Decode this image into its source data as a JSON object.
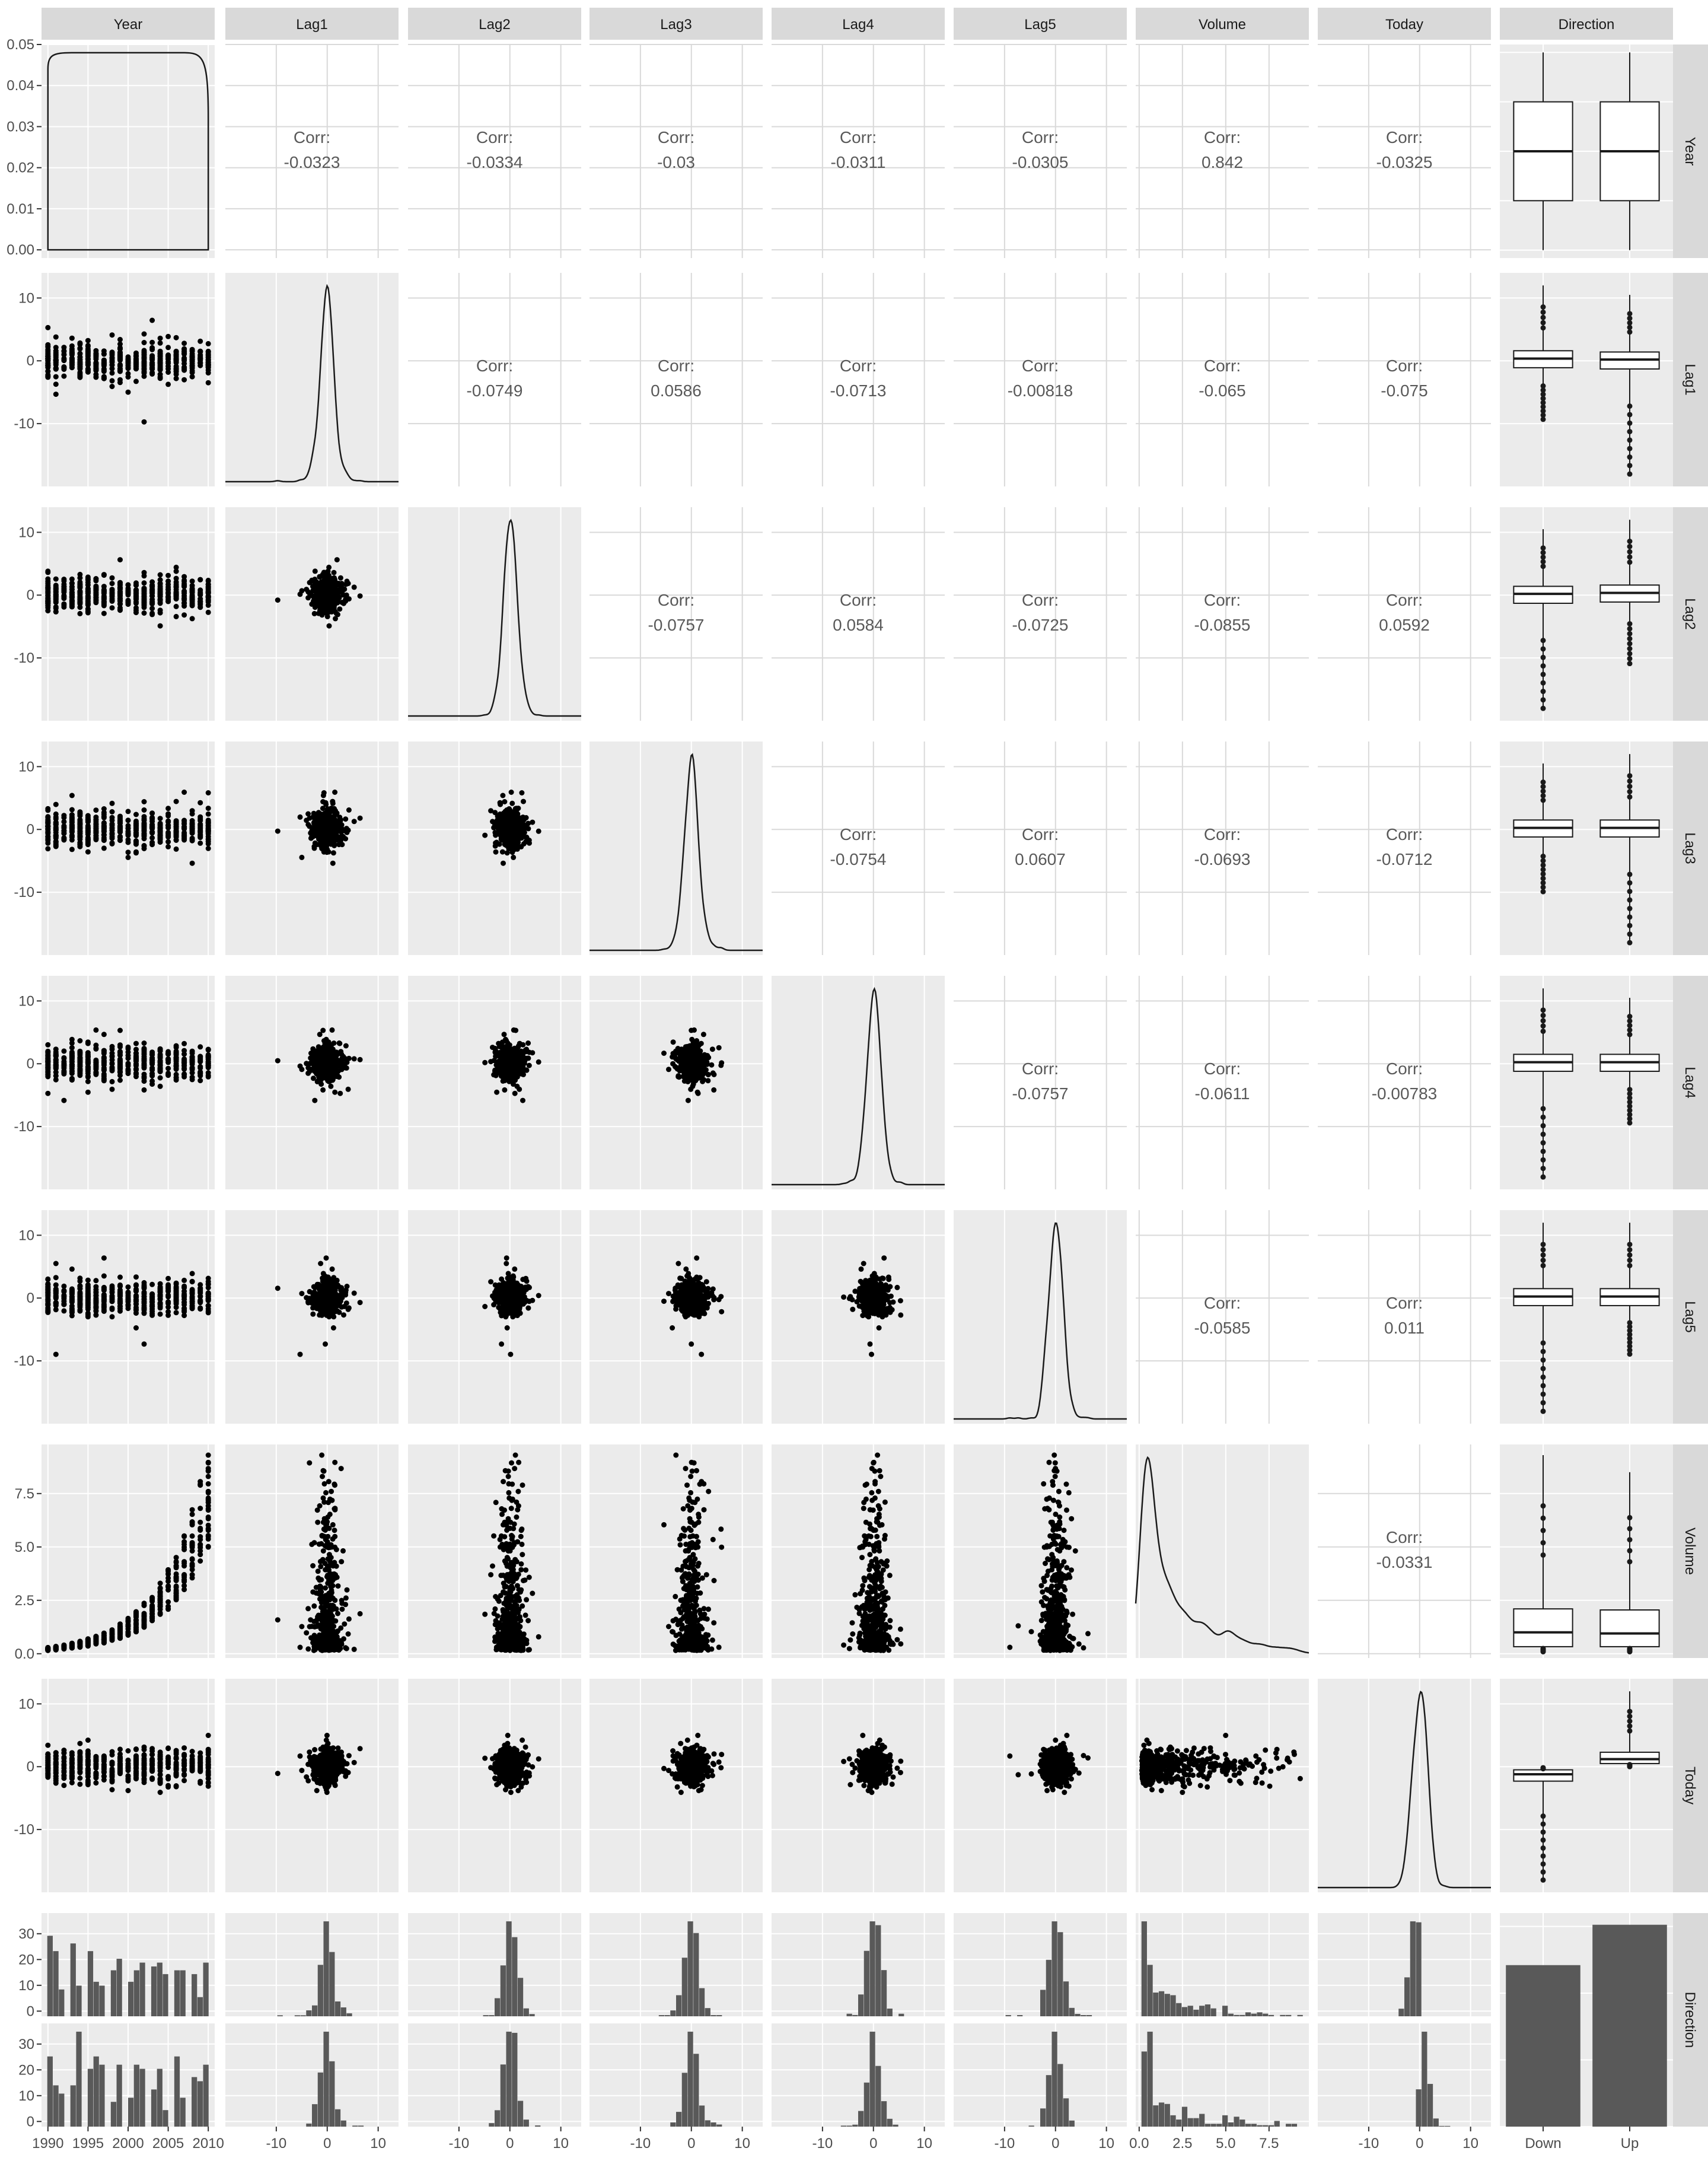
{
  "chart_data": {
    "type": "scatter",
    "variables": [
      "Year",
      "Lag1",
      "Lag2",
      "Lag3",
      "Lag4",
      "Lag5",
      "Volume",
      "Today",
      "Direction"
    ],
    "axes": {
      "Year": {
        "range": [
          1989.2,
          2010.8
        ],
        "ticks": [
          1990,
          1995,
          2000,
          2005,
          2010
        ]
      },
      "Lag": {
        "range": [
          -20,
          14
        ],
        "ticks": [
          -10,
          0,
          10
        ]
      },
      "Volume": {
        "range": [
          -0.2,
          9.8
        ],
        "ticks": [
          0.0,
          2.5,
          5.0,
          7.5
        ]
      },
      "Direction": {
        "categories": [
          "Down",
          "Up"
        ]
      },
      "year_density_y": {
        "range": [
          -0.002,
          0.05
        ],
        "ticks": [
          "0.00",
          "0.01",
          "0.02",
          "0.03",
          "0.04",
          "0.05"
        ]
      },
      "direction_count": {
        "range": [
          -2,
          38
        ],
        "ticks": [
          0,
          10,
          20,
          30
        ]
      }
    },
    "correlation_label": "Corr:",
    "correlations": [
      {
        "row": "Year",
        "col": "Lag1",
        "value": "-0.0323"
      },
      {
        "row": "Year",
        "col": "Lag2",
        "value": "-0.0334"
      },
      {
        "row": "Year",
        "col": "Lag3",
        "value": "-0.03"
      },
      {
        "row": "Year",
        "col": "Lag4",
        "value": "-0.0311"
      },
      {
        "row": "Year",
        "col": "Lag5",
        "value": "-0.0305"
      },
      {
        "row": "Year",
        "col": "Volume",
        "value": "0.842"
      },
      {
        "row": "Year",
        "col": "Today",
        "value": "-0.0325"
      },
      {
        "row": "Lag1",
        "col": "Lag2",
        "value": "-0.0749"
      },
      {
        "row": "Lag1",
        "col": "Lag3",
        "value": "0.0586"
      },
      {
        "row": "Lag1",
        "col": "Lag4",
        "value": "-0.0713"
      },
      {
        "row": "Lag1",
        "col": "Lag5",
        "value": "-0.00818"
      },
      {
        "row": "Lag1",
        "col": "Volume",
        "value": "-0.065"
      },
      {
        "row": "Lag1",
        "col": "Today",
        "value": "-0.075"
      },
      {
        "row": "Lag2",
        "col": "Lag3",
        "value": "-0.0757"
      },
      {
        "row": "Lag2",
        "col": "Lag4",
        "value": "0.0584"
      },
      {
        "row": "Lag2",
        "col": "Lag5",
        "value": "-0.0725"
      },
      {
        "row": "Lag2",
        "col": "Volume",
        "value": "-0.0855"
      },
      {
        "row": "Lag2",
        "col": "Today",
        "value": "0.0592"
      },
      {
        "row": "Lag3",
        "col": "Lag4",
        "value": "-0.0754"
      },
      {
        "row": "Lag3",
        "col": "Lag5",
        "value": "0.0607"
      },
      {
        "row": "Lag3",
        "col": "Volume",
        "value": "-0.0693"
      },
      {
        "row": "Lag3",
        "col": "Today",
        "value": "-0.0712"
      },
      {
        "row": "Lag4",
        "col": "Lag5",
        "value": "-0.0757"
      },
      {
        "row": "Lag4",
        "col": "Volume",
        "value": "-0.0611"
      },
      {
        "row": "Lag4",
        "col": "Today",
        "value": "-0.00783"
      },
      {
        "row": "Lag5",
        "col": "Volume",
        "value": "-0.0585"
      },
      {
        "row": "Lag5",
        "col": "Today",
        "value": "0.011"
      },
      {
        "row": "Volume",
        "col": "Today",
        "value": "-0.0331"
      }
    ],
    "direction_counts": [
      {
        "category": "Down",
        "count": 484
      },
      {
        "category": "Up",
        "count": 605
      }
    ],
    "direction_bar_axis_range": [
      0,
      640
    ],
    "boxplots": [
      {
        "var": "Year",
        "Down": {
          "min": 1990,
          "q1": 1995,
          "median": 2000,
          "q3": 2005,
          "max": 2010
        },
        "Up": {
          "min": 1990,
          "q1": 1995,
          "median": 2000,
          "q3": 2005,
          "max": 2010
        }
      },
      {
        "var": "Lag1",
        "Down": {
          "min": -9.4,
          "q1": -1.1,
          "median": 0.35,
          "q3": 1.6,
          "max": 12.0
        },
        "Up": {
          "min": -18.2,
          "q1": -1.3,
          "median": 0.2,
          "q3": 1.4,
          "max": 10.5
        }
      },
      {
        "var": "Lag2",
        "Down": {
          "min": -18.2,
          "q1": -1.3,
          "median": 0.2,
          "q3": 1.4,
          "max": 10.5
        },
        "Up": {
          "min": -11.0,
          "q1": -1.1,
          "median": 0.35,
          "q3": 1.6,
          "max": 12.0
        }
      },
      {
        "var": "Lag3",
        "Down": {
          "min": -10.0,
          "q1": -1.2,
          "median": 0.25,
          "q3": 1.5,
          "max": 10.5
        },
        "Up": {
          "min": -18.2,
          "q1": -1.2,
          "median": 0.25,
          "q3": 1.5,
          "max": 12.0
        }
      },
      {
        "var": "Lag4",
        "Down": {
          "min": -18.2,
          "q1": -1.2,
          "median": 0.25,
          "q3": 1.5,
          "max": 12.0
        },
        "Up": {
          "min": -9.5,
          "q1": -1.2,
          "median": 0.25,
          "q3": 1.5,
          "max": 10.5
        }
      },
      {
        "var": "Lag5",
        "Down": {
          "min": -18.2,
          "q1": -1.2,
          "median": 0.25,
          "q3": 1.5,
          "max": 12.0
        },
        "Up": {
          "min": -9.0,
          "q1": -1.2,
          "median": 0.25,
          "q3": 1.5,
          "max": 12.0
        }
      },
      {
        "var": "Volume",
        "Down": {
          "min": 0.09,
          "q1": 0.33,
          "median": 1.0,
          "q3": 2.1,
          "max": 9.3
        },
        "Up": {
          "min": 0.09,
          "q1": 0.33,
          "median": 0.95,
          "q3": 2.05,
          "max": 8.5
        }
      },
      {
        "var": "Today",
        "Down": {
          "min": -18.2,
          "q1": -2.3,
          "median": -1.2,
          "q3": -0.5,
          "max": 0.0
        },
        "Up": {
          "min": 0.0,
          "q1": 0.5,
          "median": 1.2,
          "q3": 2.3,
          "max": 12.0
        }
      }
    ]
  }
}
